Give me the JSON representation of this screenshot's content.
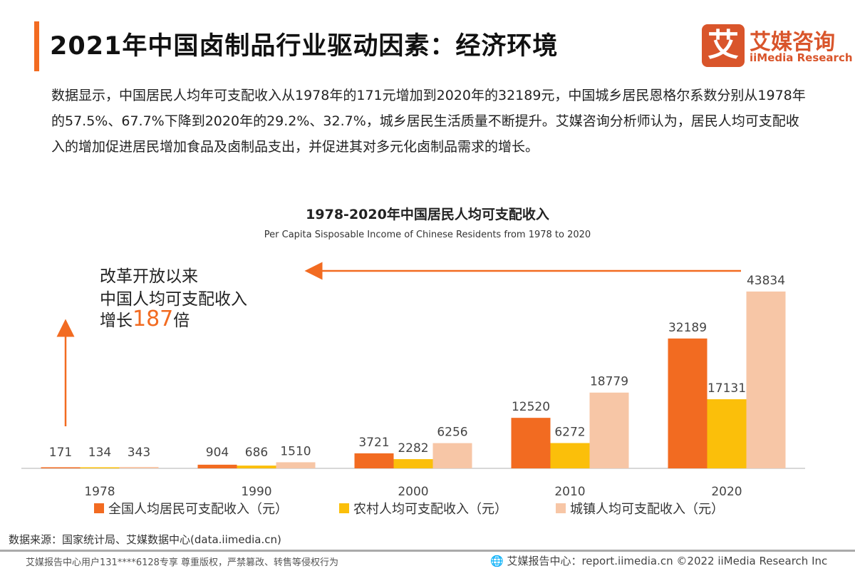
{
  "header": {
    "title": "2021年中国卤制品行业驱动因素：经济环境",
    "logo_cn": "艾媒咨询",
    "logo_en": "iiMedia Research",
    "logo_mark": "艾"
  },
  "description": "数据显示，中国居民人均年可支配收入从1978年的171元增加到2020年的32189元，中国城乡居民恩格尔系数分别从1978年的57.5%、67.7%下降到2020年的29.2%、32.7%，城乡居民生活质量不断提升。艾媒咨询分析师认为，居民人均可支配收入的增加促进居民增加食品及卤制品支出，并促进其对多元化卤制品需求的增长。",
  "annotation": {
    "line1": "改革开放以来",
    "line2": "中国人均可支配收入",
    "line3_pre": "增长",
    "line3_num": "187",
    "line3_post": "倍"
  },
  "chart_data": {
    "type": "bar",
    "title": "1978-2020年中国居民人均可支配收入",
    "subtitle": "Per Capita Sisposable Income of Chinese Residents from 1978 to 2020",
    "categories": [
      "1978",
      "1990",
      "2000",
      "2010",
      "2020"
    ],
    "series": [
      {
        "name": "全国人均居民可支配收入（元）",
        "color": "#f26b21",
        "values": [
          171,
          904,
          3721,
          12520,
          32189
        ]
      },
      {
        "name": "农村人均可支配收入（元）",
        "color": "#fbbf0a",
        "values": [
          134,
          686,
          2282,
          6272,
          17131
        ]
      },
      {
        "name": "城镇人均可支配收入（元）",
        "color": "#f7c6a6",
        "values": [
          343,
          1510,
          6256,
          18779,
          43834
        ]
      }
    ],
    "ylim": [
      0,
      44000
    ],
    "grid": false,
    "legend": "bottom"
  },
  "source": "数据来源：国家统计局、艾媒数据中心(data.iimedia.cn)",
  "footer": {
    "left": "艾媒报告中心用户131****6128专享 尊重版权，严禁篡改、转售等侵权行为",
    "right": "艾媒报告中心：report.iimedia.cn   ©2022  iiMedia Research  Inc"
  }
}
